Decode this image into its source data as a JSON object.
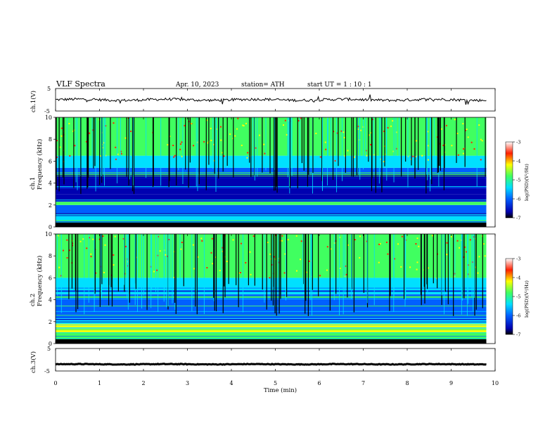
{
  "header": {
    "title": "VLF  Spectra",
    "date": "Apr. 10, 2023",
    "station": "station= ATH",
    "start_ut": "start  UT  =   1  : 10 : 1"
  },
  "chart_data": [
    {
      "type": "line",
      "panel": "ch1-voltage",
      "ylabel": "ch.1(V)",
      "ytick_labels": [
        "5",
        "-5"
      ],
      "ylim": [
        -5,
        5
      ],
      "xlim": [
        0,
        10
      ],
      "data_end_min": 9.8,
      "baseline_v": 0,
      "fluctuation_v": 0.6,
      "color": "#000000"
    },
    {
      "type": "heatmap",
      "panel": "ch1-spectrogram",
      "ylabel": "ch.1\nFrequency  (kHz)",
      "ylabel_lines": [
        "ch.1",
        "Frequency  (kHz)"
      ],
      "ytick_labels": [
        "10",
        "8",
        "6",
        "4",
        "2",
        "0"
      ],
      "ylim": [
        0,
        10
      ],
      "xlim": [
        0,
        10
      ],
      "data_end_min": 9.8,
      "colorbar": {
        "label": "log(PSD)(V²/Hz)",
        "tick_labels": [
          "-3",
          "-4",
          "-5",
          "-6",
          "-7"
        ],
        "range": [
          -7,
          -3
        ],
        "colors": [
          "#000000",
          "#0000b0",
          "#0060ff",
          "#00e0ff",
          "#40ff60",
          "#ffff00",
          "#ff2000",
          "#ffffff"
        ]
      }
    },
    {
      "type": "heatmap",
      "panel": "ch2-spectrogram",
      "ylabel": "ch.2\nFrequency  (kHz)",
      "ylabel_lines": [
        "ch.2",
        "Frequency  (kHz)"
      ],
      "ytick_labels": [
        "10",
        "8",
        "6",
        "4",
        "2",
        "0"
      ],
      "ylim": [
        0,
        10
      ],
      "xlim": [
        0,
        10
      ],
      "data_end_min": 9.8,
      "colorbar": {
        "label": "log(PSD)(V²/Hz)",
        "tick_labels": [
          "-3",
          "-4",
          "-5",
          "-6",
          "-7"
        ],
        "range": [
          -7,
          -3
        ],
        "colors": [
          "#000000",
          "#0000b0",
          "#0060ff",
          "#00e0ff",
          "#40ff60",
          "#ffff00",
          "#ff2000",
          "#ffffff"
        ]
      }
    },
    {
      "type": "line",
      "panel": "ch3-voltage",
      "ylabel": "ch.3(V)",
      "ytick_labels": [
        "5",
        "-5"
      ],
      "ylim": [
        -5,
        5
      ],
      "xlim": [
        0,
        10
      ],
      "data_end_min": 9.8,
      "baseline_v": -2,
      "fluctuation_v": 0.15,
      "color": "#000000"
    }
  ],
  "x_axis": {
    "label": "Time  (min)",
    "tick_labels": [
      "0",
      "1",
      "2",
      "3",
      "4",
      "5",
      "6",
      "7",
      "8",
      "9",
      "10"
    ],
    "range": [
      0,
      10
    ]
  }
}
